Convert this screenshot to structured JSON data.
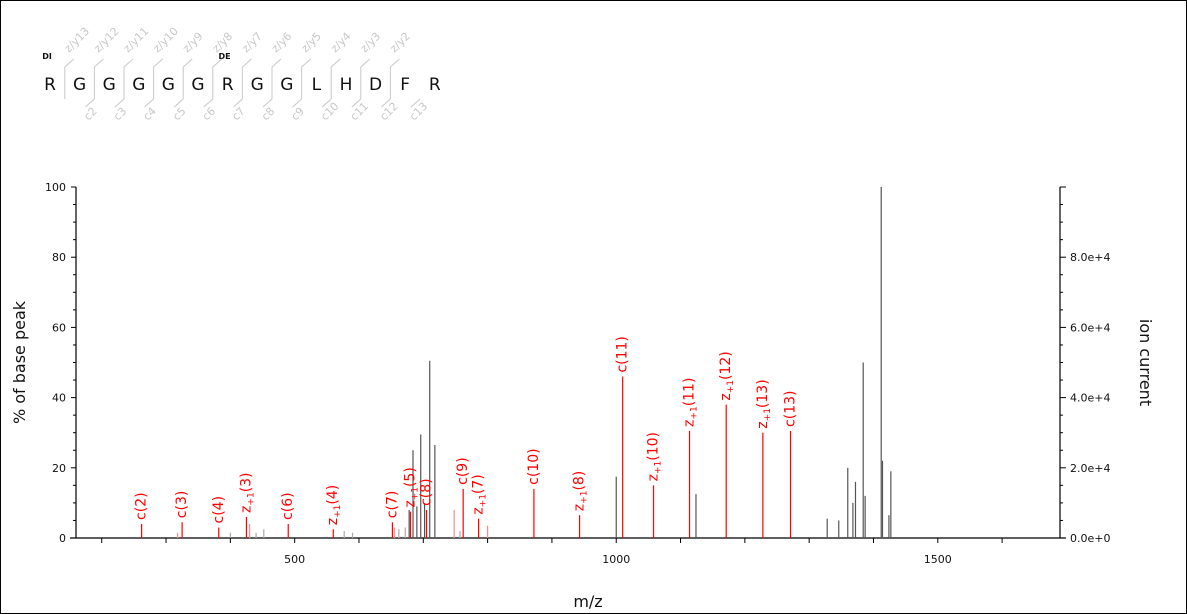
{
  "sequence": {
    "residues": [
      "R",
      "G",
      "G",
      "G",
      "G",
      "G",
      "R",
      "G",
      "G",
      "L",
      "H",
      "D",
      "F",
      "R"
    ],
    "modifications": [
      {
        "residue_index": 0,
        "label": "DI"
      },
      {
        "residue_index": 6,
        "label": "DE"
      }
    ],
    "top_fragments": [
      "z/y13",
      "z/y12",
      "z/y11",
      "z/y10",
      "z/y9",
      "z/y8",
      "z/y7",
      "z/y6",
      "z/y5",
      "z/y4",
      "z/y3",
      "z/y2"
    ],
    "bottom_fragments": [
      "c2",
      "c3",
      "c4",
      "c5",
      "c6",
      "c7",
      "c8",
      "c9",
      "c10",
      "c11",
      "c12",
      "c13"
    ],
    "fragment_color": "#c8c8c8"
  },
  "chart_data": {
    "type": "bar",
    "xlabel": "m/z",
    "ylabel": "% of base peak",
    "y2label": "ion current",
    "xlim": [
      160,
      1690
    ],
    "ylim": [
      0,
      100
    ],
    "y2lim": [
      0,
      100000
    ],
    "x_ticks": [
      500,
      1000,
      1500
    ],
    "y_ticks": [
      0,
      20,
      40,
      60,
      80,
      100
    ],
    "y2_ticks": [
      {
        "value": 0,
        "label": "0.0e+0"
      },
      {
        "value": 20000,
        "label": "2.0e+4"
      },
      {
        "value": 40000,
        "label": "4.0e+4"
      },
      {
        "value": 60000,
        "label": "6.0e+4"
      },
      {
        "value": 80000,
        "label": "8.0e+4"
      }
    ],
    "colors": {
      "matched": "#ff0000",
      "unmatched": "#555555",
      "matched_light": "#ff8888",
      "unmatched_light": "#aaaaaa"
    },
    "matched_peaks": [
      {
        "mz": 262,
        "intensity": 4,
        "label": "c(2)"
      },
      {
        "mz": 325,
        "intensity": 4.5,
        "label": "c(3)"
      },
      {
        "mz": 382,
        "intensity": 3,
        "label": "c(4)"
      },
      {
        "mz": 425,
        "intensity": 6,
        "label": "z+1(3)"
      },
      {
        "mz": 490,
        "intensity": 4,
        "label": "c(6)"
      },
      {
        "mz": 560,
        "intensity": 2.5,
        "label": "z+1(4)"
      },
      {
        "mz": 652,
        "intensity": 4.5,
        "label": "c(7)"
      },
      {
        "mz": 680,
        "intensity": 7.5,
        "label": "z+1(5)"
      },
      {
        "mz": 705,
        "intensity": 8,
        "label": "c(8)"
      },
      {
        "mz": 762,
        "intensity": 14,
        "label": "c(9)"
      },
      {
        "mz": 786,
        "intensity": 5.5,
        "label": "z+1(7)"
      },
      {
        "mz": 872,
        "intensity": 14,
        "label": "c(10)"
      },
      {
        "mz": 943,
        "intensity": 6.5,
        "label": "z+1(8)"
      },
      {
        "mz": 1010,
        "intensity": 46,
        "label": "c(11)"
      },
      {
        "mz": 1058,
        "intensity": 15,
        "label": "z+1(10)"
      },
      {
        "mz": 1114,
        "intensity": 30.5,
        "label": "z+1(11)"
      },
      {
        "mz": 1171,
        "intensity": 38,
        "label": "z+1(12)"
      },
      {
        "mz": 1228,
        "intensity": 30,
        "label": "z+1(13)"
      },
      {
        "mz": 1271,
        "intensity": 30.5,
        "label": "c(13)"
      },
      {
        "mz": 318,
        "intensity": 1.5,
        "label": ""
      },
      {
        "mz": 430,
        "intensity": 4,
        "label": ""
      },
      {
        "mz": 655,
        "intensity": 3,
        "label": ""
      },
      {
        "mz": 748,
        "intensity": 8,
        "label": ""
      },
      {
        "mz": 800,
        "intensity": 3.5,
        "label": ""
      }
    ],
    "unmatched_peaks": [
      {
        "mz": 400,
        "intensity": 1.5
      },
      {
        "mz": 440,
        "intensity": 1.5
      },
      {
        "mz": 452,
        "intensity": 2.5
      },
      {
        "mz": 577,
        "intensity": 2
      },
      {
        "mz": 590,
        "intensity": 1.5
      },
      {
        "mz": 662,
        "intensity": 2.5
      },
      {
        "mz": 672,
        "intensity": 3
      },
      {
        "mz": 678,
        "intensity": 8
      },
      {
        "mz": 684,
        "intensity": 25
      },
      {
        "mz": 690,
        "intensity": 9
      },
      {
        "mz": 696,
        "intensity": 29.5
      },
      {
        "mz": 702,
        "intensity": 10
      },
      {
        "mz": 710,
        "intensity": 50.5
      },
      {
        "mz": 718,
        "intensity": 26.5
      },
      {
        "mz": 757,
        "intensity": 2
      },
      {
        "mz": 1000,
        "intensity": 17.5
      },
      {
        "mz": 1124,
        "intensity": 12.5
      },
      {
        "mz": 1328,
        "intensity": 5.5
      },
      {
        "mz": 1346,
        "intensity": 5
      },
      {
        "mz": 1360,
        "intensity": 20
      },
      {
        "mz": 1368,
        "intensity": 10
      },
      {
        "mz": 1372,
        "intensity": 16
      },
      {
        "mz": 1384,
        "intensity": 50
      },
      {
        "mz": 1387,
        "intensity": 12
      },
      {
        "mz": 1412,
        "intensity": 100
      },
      {
        "mz": 1414,
        "intensity": 22
      },
      {
        "mz": 1424,
        "intensity": 6.5
      },
      {
        "mz": 1427,
        "intensity": 19
      }
    ]
  }
}
